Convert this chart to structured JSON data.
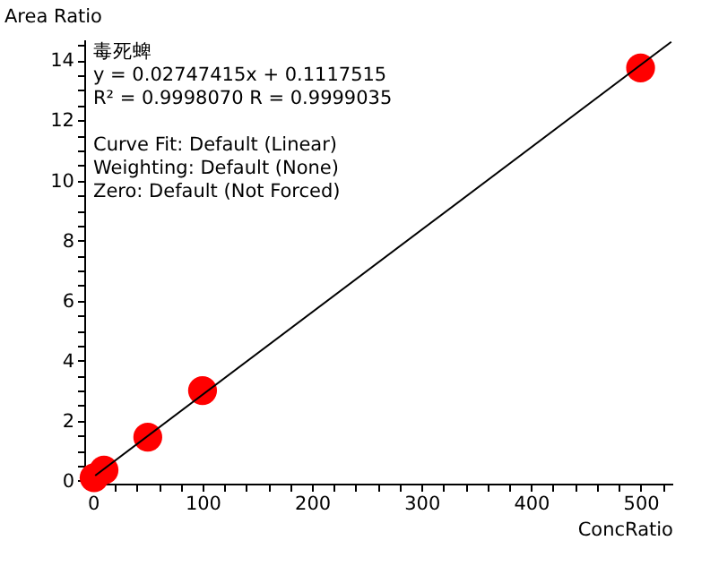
{
  "chart_data": {
    "type": "scatter",
    "xlabel": "ConcRatio",
    "ylabel": "Area Ratio",
    "annotations": [
      "毒死蜱",
      "y = 0.02747415x + 0.1117515",
      "R² = 0.9998070    R = 0.9999035",
      "Curve Fit: Default (Linear)",
      "Weighting: Default (None)",
      "Zero: Default (Not Forced)"
    ],
    "series": [
      {
        "color": "#ff0000",
        "marker": "circle",
        "x": [
          1,
          10,
          50,
          100,
          500
        ],
        "values": [
          0.1,
          0.35,
          1.45,
          3.0,
          13.75
        ]
      },
      {
        "type": "line",
        "color": "#000000",
        "marker": "none",
        "x": [
          2,
          528
        ],
        "values": [
          0.17,
          14.62
        ]
      }
    ],
    "xlim": [
      -8,
      529
    ],
    "ylim": [
      -0.1,
      14.7
    ],
    "xticks": [
      0,
      {
        "value": 20,
        "label": null
      },
      {
        "value": 40,
        "label": null
      },
      {
        "value": 60,
        "label": null
      },
      {
        "value": 80,
        "label": null
      },
      100,
      {
        "value": 120,
        "label": null
      },
      {
        "value": 140,
        "label": null
      },
      {
        "value": 160,
        "label": null
      },
      {
        "value": 180,
        "label": null
      },
      200,
      {
        "value": 220,
        "label": null
      },
      {
        "value": 240,
        "label": null
      },
      {
        "value": 260,
        "label": null
      },
      {
        "value": 280,
        "label": null
      },
      300,
      {
        "value": 320,
        "label": null
      },
      {
        "value": 340,
        "label": null
      },
      {
        "value": 360,
        "label": null
      },
      {
        "value": 380,
        "label": null
      },
      400,
      {
        "value": 420,
        "label": null
      },
      {
        "value": 440,
        "label": null
      },
      {
        "value": 460,
        "label": null
      },
      {
        "value": 480,
        "label": null
      },
      500,
      {
        "value": 520,
        "label": null
      }
    ],
    "yticks": [
      0,
      {
        "value": 0.5,
        "label": null
      },
      {
        "value": 1,
        "label": null
      },
      {
        "value": 1.5,
        "label": null
      },
      2,
      {
        "value": 2.5,
        "label": null
      },
      {
        "value": 3,
        "label": null
      },
      {
        "value": 3.5,
        "label": null
      },
      4,
      {
        "value": 4.5,
        "label": null
      },
      {
        "value": 5,
        "label": null
      },
      {
        "value": 5.5,
        "label": null
      },
      6,
      {
        "value": 6.5,
        "label": null
      },
      {
        "value": 7,
        "label": null
      },
      {
        "value": 7.5,
        "label": null
      },
      8,
      {
        "value": 8.5,
        "label": null
      },
      {
        "value": 9,
        "label": null
      },
      {
        "value": 9.5,
        "label": null
      },
      10,
      {
        "value": 10.5,
        "label": null
      },
      {
        "value": 11,
        "label": null
      },
      {
        "value": 11.5,
        "label": null
      },
      12,
      {
        "value": 12.5,
        "label": null
      },
      {
        "value": 13,
        "label": null
      },
      {
        "value": 13.5,
        "label": null
      },
      14,
      {
        "value": 14.5,
        "label": null
      }
    ],
    "grid": false
  }
}
